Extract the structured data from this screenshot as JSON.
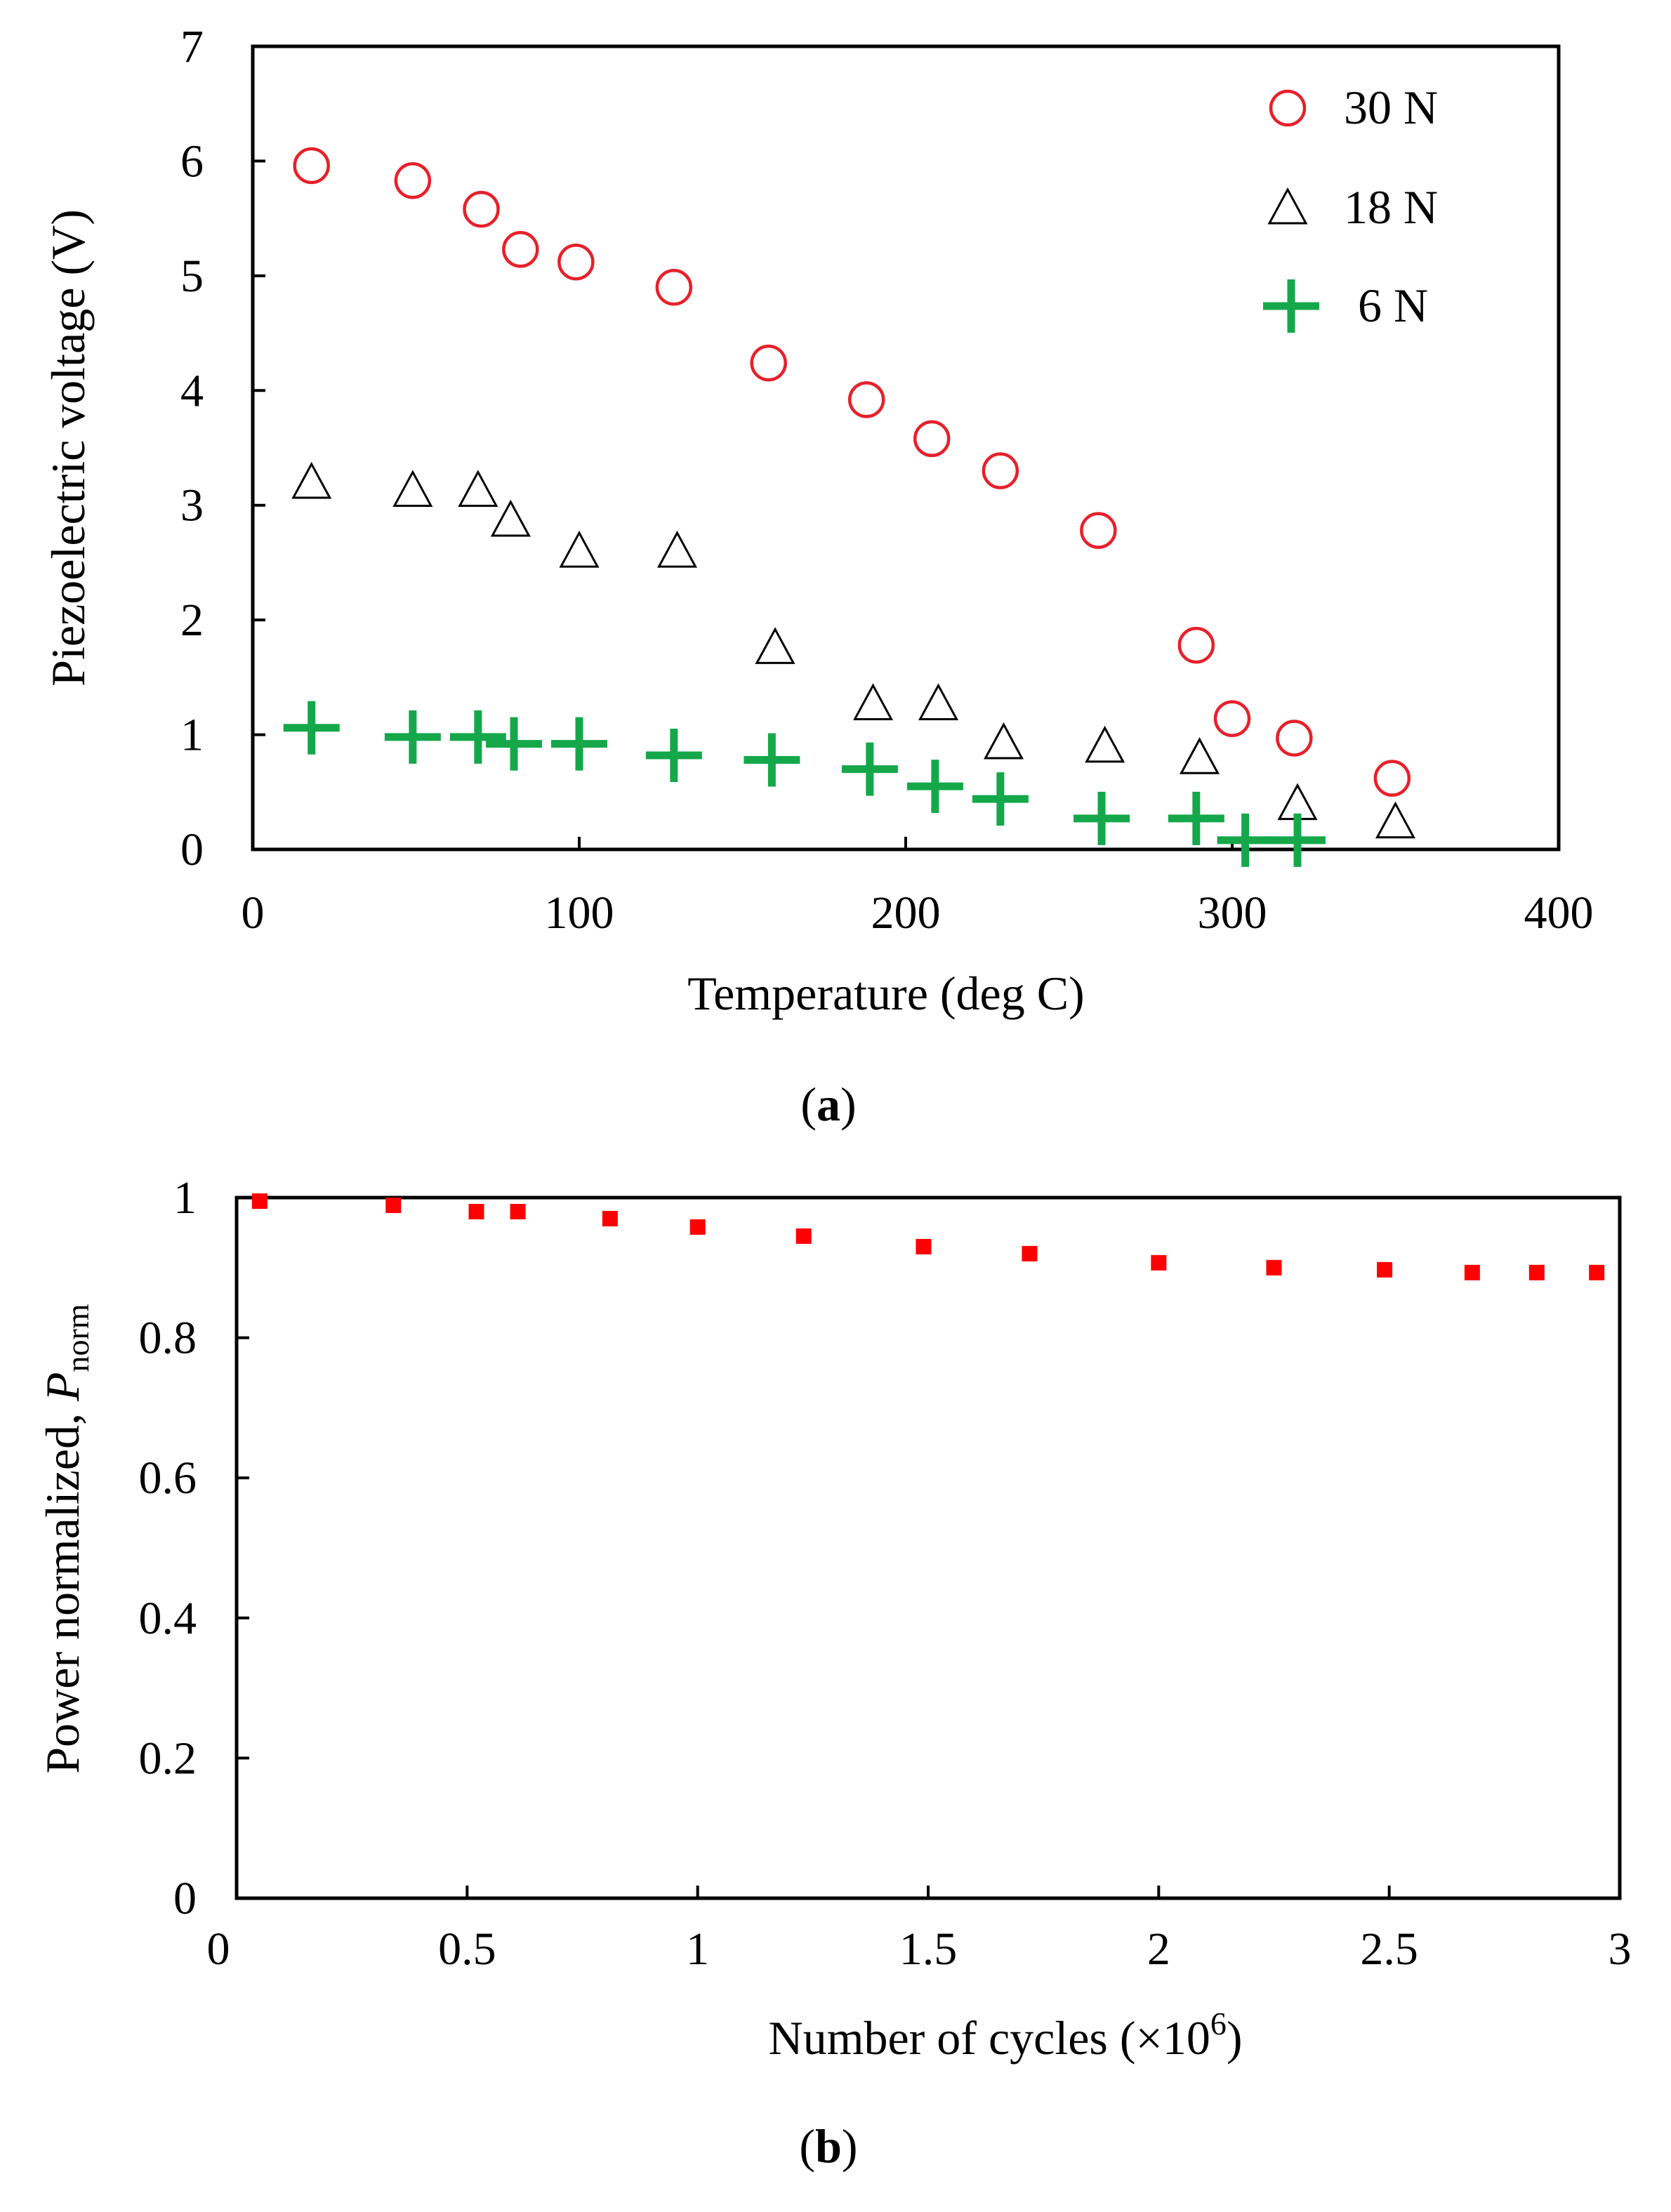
{
  "chart_data": [
    {
      "type": "scatter",
      "xlabel": "Temperature (deg C)",
      "ylabel": "Piezoelectric voltage (V)",
      "xlim": [
        0,
        400
      ],
      "ylim": [
        0,
        7
      ],
      "xticks": [
        "0",
        "100",
        "200",
        "300",
        "400"
      ],
      "yticks": [
        "0",
        "1",
        "2",
        "3",
        "4",
        "5",
        "6",
        "7"
      ],
      "legend_position": "top-right",
      "caption_letter": "a",
      "series": [
        {
          "name": "30 N",
          "marker": "circle",
          "color": "#e8202a",
          "x": [
            18,
            49,
            70,
            82,
            99,
            129,
            158,
            188,
            208,
            229,
            259,
            289,
            300,
            319,
            349
          ],
          "y": [
            5.96,
            5.83,
            5.58,
            5.23,
            5.12,
            4.9,
            4.24,
            3.92,
            3.58,
            3.3,
            2.78,
            1.78,
            1.14,
            0.97,
            0.62
          ]
        },
        {
          "name": "18 N",
          "marker": "triangle",
          "color": "#000000",
          "x": [
            18,
            49,
            69,
            79,
            100,
            130,
            160,
            190,
            210,
            230,
            261,
            290,
            320,
            350
          ],
          "y": [
            3.2,
            3.13,
            3.13,
            2.87,
            2.6,
            2.6,
            1.76,
            1.27,
            1.27,
            0.93,
            0.9,
            0.8,
            0.4,
            0.24
          ]
        },
        {
          "name": "6 N",
          "marker": "plus",
          "color": "#14a84b",
          "x": [
            18,
            49,
            69,
            80,
            100,
            129,
            159,
            189,
            209,
            229,
            260,
            289,
            304,
            320
          ],
          "y": [
            1.06,
            0.98,
            0.98,
            0.92,
            0.92,
            0.82,
            0.78,
            0.7,
            0.55,
            0.44,
            0.27,
            0.27,
            0.08,
            0.08
          ]
        }
      ]
    },
    {
      "type": "scatter",
      "xlabel_main": "Number of cycles (",
      "xlabel_mult": "×10",
      "xlabel_exp": "6",
      "xlabel_close": ")",
      "ylabel_main": "Power normalized, ",
      "ylabel_var": "P",
      "ylabel_sub": "norm",
      "xlim": [
        0,
        3
      ],
      "ylim": [
        0,
        1
      ],
      "xticks": [
        "0",
        "0.5",
        "1",
        "1.5",
        "2",
        "2.5",
        "3"
      ],
      "yticks": [
        "0",
        "0.2",
        "0.4",
        "0.6",
        "0.8",
        "1"
      ],
      "caption_letter": "b",
      "series": [
        {
          "name": "Pnorm",
          "marker": "square",
          "color": "#ff0000",
          "x": [
            0.05,
            0.34,
            0.52,
            0.61,
            0.81,
            1.0,
            1.23,
            1.49,
            1.72,
            2.0,
            2.25,
            2.49,
            2.68,
            2.82,
            2.95
          ],
          "y": [
            0.995,
            0.989,
            0.98,
            0.98,
            0.97,
            0.958,
            0.945,
            0.93,
            0.92,
            0.907,
            0.9,
            0.897,
            0.893,
            0.893,
            0.893
          ]
        }
      ]
    }
  ]
}
